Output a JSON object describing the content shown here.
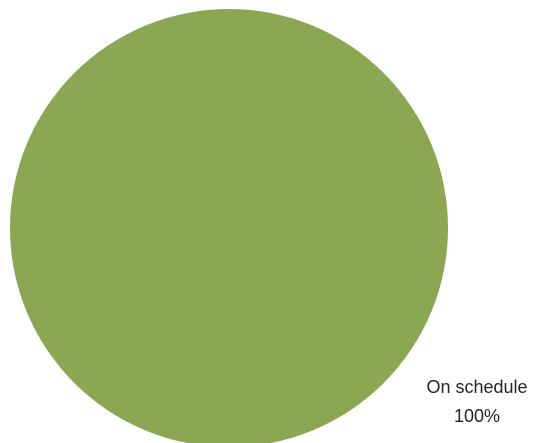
{
  "chart_data": {
    "type": "pie",
    "categories": [
      "On schedule"
    ],
    "values": [
      100
    ],
    "data_labels": [
      {
        "category": "On schedule",
        "percent": "100%"
      }
    ],
    "colors": [
      "#8ba751"
    ],
    "title": "",
    "legend": "none"
  }
}
